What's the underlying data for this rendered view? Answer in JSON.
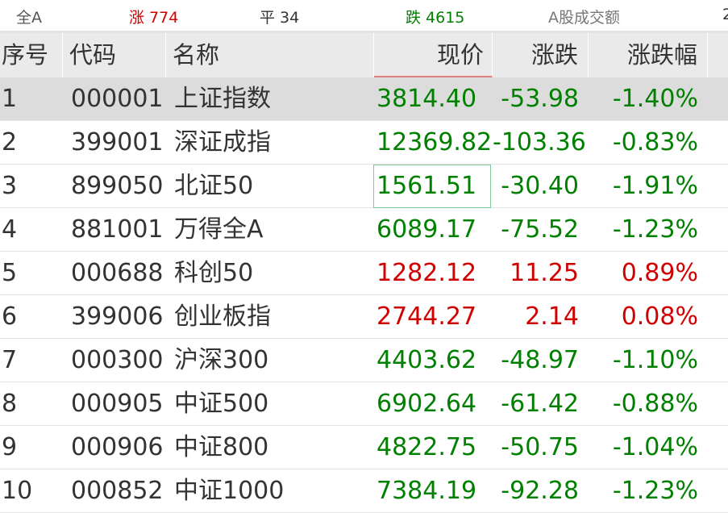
{
  "colors": {
    "up": "#d00000",
    "down": "#008000",
    "flat": "#333333"
  },
  "summary": {
    "all": "全A",
    "up": "涨 774",
    "flat": "平 34",
    "down": "跌 4615",
    "turnover_label": "A股成交额",
    "turnover_partial": "2"
  },
  "columns": [
    "序号",
    "代码",
    "名称",
    "现价",
    "涨跌",
    "涨跌幅"
  ],
  "rows": [
    {
      "idx": "1",
      "code": "000001",
      "name": "上证指数",
      "price": "3814.40",
      "change": "-53.98",
      "pct": "-1.40%",
      "dir": "down"
    },
    {
      "idx": "2",
      "code": "399001",
      "name": "深证成指",
      "price": "12369.82",
      "change": "-103.36",
      "pct": "-0.83%",
      "dir": "down"
    },
    {
      "idx": "3",
      "code": "899050",
      "name": "北证50",
      "price": "1561.51",
      "change": "-30.40",
      "pct": "-1.91%",
      "dir": "down"
    },
    {
      "idx": "4",
      "code": "881001",
      "name": "万得全A",
      "price": "6089.17",
      "change": "-75.52",
      "pct": "-1.23%",
      "dir": "down"
    },
    {
      "idx": "5",
      "code": "000688",
      "name": "科创50",
      "price": "1282.12",
      "change": "11.25",
      "pct": "0.89%",
      "dir": "up"
    },
    {
      "idx": "6",
      "code": "399006",
      "name": "创业板指",
      "price": "2744.27",
      "change": "2.14",
      "pct": "0.08%",
      "dir": "up"
    },
    {
      "idx": "7",
      "code": "000300",
      "name": "沪深300",
      "price": "4403.62",
      "change": "-48.97",
      "pct": "-1.10%",
      "dir": "down"
    },
    {
      "idx": "8",
      "code": "000905",
      "name": "中证500",
      "price": "6902.64",
      "change": "-61.42",
      "pct": "-0.88%",
      "dir": "down"
    },
    {
      "idx": "9",
      "code": "000906",
      "name": "中证800",
      "price": "4822.75",
      "change": "-50.75",
      "pct": "-1.04%",
      "dir": "down"
    },
    {
      "idx": "10",
      "code": "000852",
      "name": "中证1000",
      "price": "7384.19",
      "change": "-92.28",
      "pct": "-1.23%",
      "dir": "down"
    }
  ]
}
